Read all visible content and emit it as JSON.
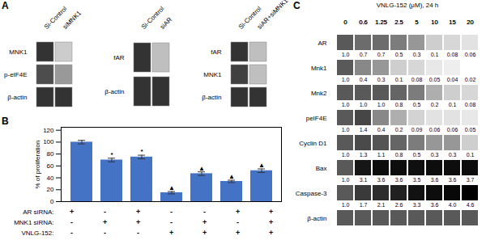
{
  "chart_data": [
    {
      "type": "heatmap",
      "annotations": [
        "A"
      ],
      "x": [
        "Si-Control",
        "siMNK1"
      ],
      "y": [
        "MNK1",
        "p-eIF4E",
        "β-actin"
      ],
      "cells": [
        [
          0.2,
          0.8
        ],
        [
          0.3,
          0.6
        ],
        [
          0.2,
          0.2
        ]
      ]
    },
    {
      "type": "heatmap",
      "x": [
        "Si-Control",
        "siAR"
      ],
      "y": [
        "fAR",
        "β-actin"
      ],
      "cells": [
        [
          0.2,
          0.75
        ],
        [
          0.2,
          0.2
        ]
      ]
    },
    {
      "type": "heatmap",
      "x": [
        "Si-Control",
        "siAR+siMNK1"
      ],
      "y": [
        "fAR",
        "MNK1",
        "β-actin"
      ],
      "cells": [
        [
          0.2,
          0.75
        ],
        [
          0.25,
          0.75
        ],
        [
          0.2,
          0.2
        ]
      ]
    },
    {
      "type": "bar",
      "annotations": [
        "B"
      ],
      "categories": [
        null,
        null,
        null,
        null,
        null,
        null,
        null
      ],
      "values": [
        100,
        70,
        75,
        15,
        47,
        34,
        52
      ],
      "errors": [
        3,
        3,
        3,
        2,
        3,
        2,
        3
      ],
      "color": "#4472C4",
      "ylabel": "% of proliferation",
      "ylim": [
        0,
        125
      ],
      "yticks": [
        0,
        20,
        40,
        60,
        80,
        100,
        120
      ],
      "grid": false,
      "tick_labels": "y",
      "significance": [
        null,
        "*",
        "*",
        "▲",
        "▲",
        "▲",
        "▲"
      ],
      "table": [
        {
          "label": "AR siRNA:",
          "signs": [
            "+",
            "-",
            "+",
            "-",
            "-",
            "+",
            "+"
          ]
        },
        {
          "label": "MNK1 siRNA:",
          "signs": [
            "-",
            "+",
            "+",
            "-",
            "+",
            "-",
            "+"
          ]
        },
        {
          "label": "VNLG-152:",
          "signs": [
            "-",
            "-",
            "-",
            "+",
            "+",
            "+",
            "+"
          ]
        }
      ]
    },
    {
      "type": "heatmap",
      "annotations": [
        "C"
      ],
      "title": "VNLG-152 (μM), 24 h",
      "data_labels": true,
      "x": [
        "0",
        "0.6",
        "1.25",
        "2.5",
        "5",
        "10",
        "15",
        "20"
      ],
      "y": [
        "AR",
        "Mnk1",
        "Mnk2",
        "peIF4E",
        "Cyclin D1",
        "Bax",
        "Caspase-3",
        "β-actin"
      ],
      "cells": [
        [
          1.0,
          0.7,
          0.7,
          0.5,
          0.3,
          0.1,
          0.08,
          0.06
        ],
        [
          1.0,
          0.4,
          0.3,
          0.1,
          0.08,
          0.05,
          0.04,
          0.02
        ],
        [
          1.0,
          1.0,
          1.0,
          0.8,
          0.5,
          0.2,
          0.1,
          0.08
        ],
        [
          1.0,
          1.4,
          0.4,
          0.2,
          0.09,
          0.06,
          0.06,
          0.05
        ],
        [
          1.0,
          1.3,
          1.1,
          0.8,
          0.5,
          0.3,
          0.3,
          0.1
        ],
        [
          1.0,
          3.1,
          3.6,
          3.6,
          3.5,
          3.6,
          3.6,
          3.7
        ],
        [
          1.0,
          1.7,
          2.1,
          2.6,
          3.3,
          3.6,
          4.0,
          4.6
        ],
        [
          1.0,
          1.0,
          1.0,
          1.0,
          1.0,
          1.0,
          1.0,
          1.0
        ]
      ],
      "value_labels": [
        [
          "1.0",
          "0.7",
          "0.7",
          "0.5",
          "0.3",
          "0.1",
          "0.08",
          "0.06"
        ],
        [
          "1.0",
          "0.4",
          "0.3",
          "0.1",
          "0.08",
          "0.05",
          "0.04",
          "0.02"
        ],
        [
          "1.0",
          "1.0",
          "1.0",
          "0.8",
          "0.5",
          "0.2",
          "0.1",
          "0.08"
        ],
        [
          "1.0",
          "1.4",
          "0.4",
          "0.2",
          "0.09",
          "0.06",
          "0.06",
          "0.05"
        ],
        [
          "1.0",
          "1.3",
          "1.1",
          "0.8",
          "0.5",
          "0.3",
          "0.3",
          "0.1"
        ],
        [
          "1.0",
          "3.1",
          "3.6",
          "3.6",
          "3.5",
          "3.6",
          "3.6",
          "3.7"
        ],
        [
          "1.0",
          "1.7",
          "2.1",
          "2.6",
          "3.3",
          "3.6",
          "4.0",
          "4.6"
        ],
        null
      ]
    }
  ]
}
